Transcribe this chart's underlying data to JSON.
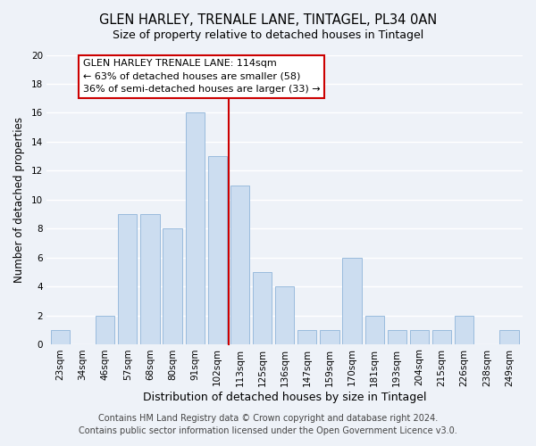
{
  "title": "GLEN HARLEY, TRENALE LANE, TINTAGEL, PL34 0AN",
  "subtitle": "Size of property relative to detached houses in Tintagel",
  "xlabel": "Distribution of detached houses by size in Tintagel",
  "ylabel": "Number of detached properties",
  "bar_labels": [
    "23sqm",
    "34sqm",
    "46sqm",
    "57sqm",
    "68sqm",
    "80sqm",
    "91sqm",
    "102sqm",
    "113sqm",
    "125sqm",
    "136sqm",
    "147sqm",
    "159sqm",
    "170sqm",
    "181sqm",
    "193sqm",
    "204sqm",
    "215sqm",
    "226sqm",
    "238sqm",
    "249sqm"
  ],
  "bar_values": [
    1,
    0,
    2,
    9,
    9,
    8,
    16,
    13,
    11,
    5,
    4,
    1,
    1,
    6,
    2,
    1,
    1,
    1,
    2,
    0,
    1
  ],
  "bar_color": "#ccddf0",
  "bar_edge_color": "#99bbdd",
  "ylim": [
    0,
    20
  ],
  "yticks": [
    0,
    2,
    4,
    6,
    8,
    10,
    12,
    14,
    16,
    18,
    20
  ],
  "vline_x_index": 8,
  "vline_color": "#cc0000",
  "annotation_title": "GLEN HARLEY TRENALE LANE: 114sqm",
  "annotation_line1": "← 63% of detached houses are smaller (58)",
  "annotation_line2": "36% of semi-detached houses are larger (33) →",
  "annotation_box_color": "#ffffff",
  "annotation_box_edge": "#cc0000",
  "footer_line1": "Contains HM Land Registry data © Crown copyright and database right 2024.",
  "footer_line2": "Contains public sector information licensed under the Open Government Licence v3.0.",
  "background_color": "#eef2f8",
  "grid_color": "#ffffff",
  "title_fontsize": 10.5,
  "xlabel_fontsize": 9,
  "ylabel_fontsize": 8.5,
  "tick_fontsize": 7.5,
  "footer_fontsize": 7,
  "ann_fontsize": 8
}
